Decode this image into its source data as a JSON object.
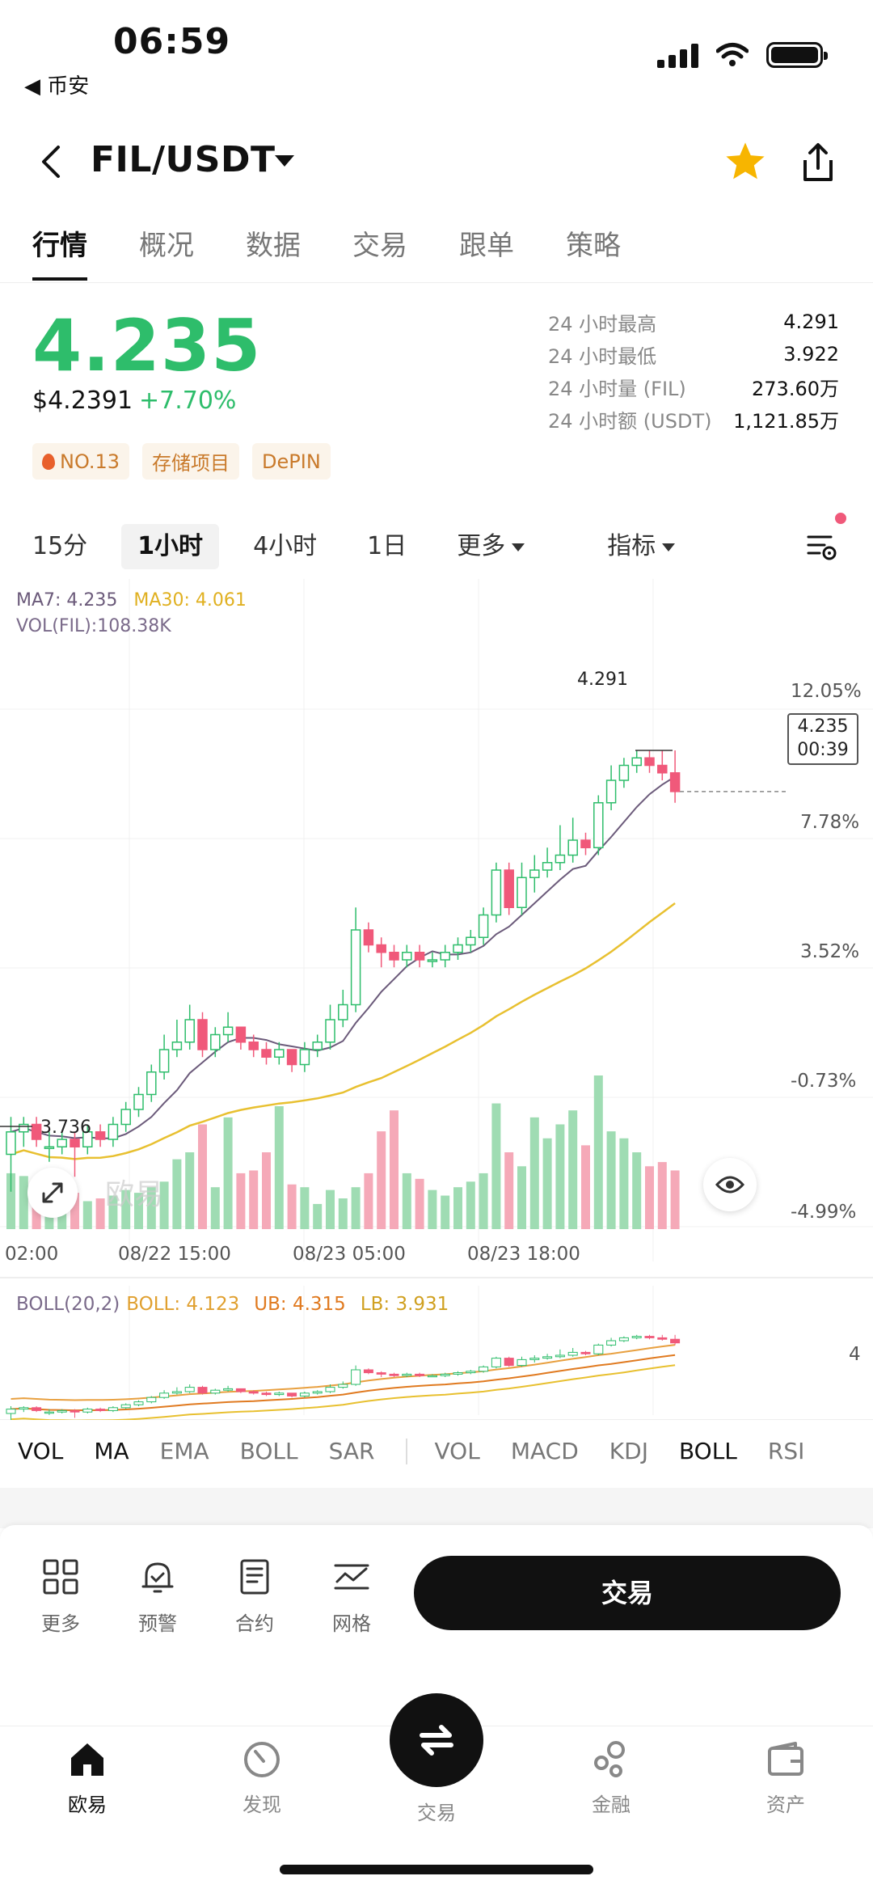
{
  "status_bar": {
    "time": "06:59",
    "back_app": "◀ 币安"
  },
  "header": {
    "pair": "FIL/USDT"
  },
  "tabs": [
    "行情",
    "概况",
    "数据",
    "交易",
    "跟单",
    "策略"
  ],
  "price": {
    "last": "4.235",
    "usd": "$4.2391",
    "change": "+7.70%"
  },
  "tags": [
    "NO.13",
    "存储项目",
    "DePIN"
  ],
  "stats": [
    {
      "label": "24 小时最高",
      "value": "4.291"
    },
    {
      "label": "24 小时最低",
      "value": "3.922"
    },
    {
      "label": "24 小时量 (FIL)",
      "value": "273.60万"
    },
    {
      "label": "24 小时额 (USDT)",
      "value": "1,121.85万"
    }
  ],
  "intervals": {
    "m15": "15分",
    "h1": "1小时",
    "h4": "4小时",
    "d1": "1日",
    "more": "更多",
    "indicator": "指标"
  },
  "chart": {
    "ma7": "MA7: 4.235",
    "ma30": "MA30: 4.061",
    "vol": "VOL(FIL):108.38K",
    "high_label": "4.291",
    "low_label": "3.736",
    "current_price": "4.235",
    "countdown": "00:39",
    "watermark": "欧易",
    "y_axis": [
      "12.05%",
      "7.78%",
      "3.52%",
      "-0.73%",
      "-4.99%"
    ],
    "x_axis": [
      "02:00",
      "08/22 15:00",
      "08/23 05:00",
      "08/23 18:00"
    ]
  },
  "chart_data": {
    "type": "candlestick",
    "title": "FIL/USDT 1小时",
    "ylim": [
      3.65,
      4.45
    ],
    "candles": [
      {
        "o": 3.75,
        "c": 3.78,
        "h": 3.8,
        "l": 3.7,
        "v": 40
      },
      {
        "o": 3.78,
        "c": 3.79,
        "h": 3.8,
        "l": 3.76,
        "v": 38
      },
      {
        "o": 3.79,
        "c": 3.77,
        "h": 3.8,
        "l": 3.76,
        "v": 30
      },
      {
        "o": 3.76,
        "c": 3.76,
        "h": 3.78,
        "l": 3.74,
        "v": 22
      },
      {
        "o": 3.76,
        "c": 3.77,
        "h": 3.78,
        "l": 3.75,
        "v": 25
      },
      {
        "o": 3.77,
        "c": 3.76,
        "h": 3.78,
        "l": 3.72,
        "v": 26
      },
      {
        "o": 3.76,
        "c": 3.78,
        "h": 3.79,
        "l": 3.75,
        "v": 20
      },
      {
        "o": 3.78,
        "c": 3.77,
        "h": 3.79,
        "l": 3.76,
        "v": 22
      },
      {
        "o": 3.77,
        "c": 3.79,
        "h": 3.8,
        "l": 3.76,
        "v": 24
      },
      {
        "o": 3.79,
        "c": 3.81,
        "h": 3.82,
        "l": 3.78,
        "v": 28
      },
      {
        "o": 3.81,
        "c": 3.83,
        "h": 3.84,
        "l": 3.8,
        "v": 26
      },
      {
        "o": 3.83,
        "c": 3.86,
        "h": 3.87,
        "l": 3.82,
        "v": 30
      },
      {
        "o": 3.86,
        "c": 3.89,
        "h": 3.91,
        "l": 3.85,
        "v": 34
      },
      {
        "o": 3.89,
        "c": 3.9,
        "h": 3.93,
        "l": 3.88,
        "v": 50
      },
      {
        "o": 3.9,
        "c": 3.93,
        "h": 3.95,
        "l": 3.89,
        "v": 55
      },
      {
        "o": 3.93,
        "c": 3.89,
        "h": 3.94,
        "l": 3.88,
        "v": 75
      },
      {
        "o": 3.89,
        "c": 3.91,
        "h": 3.92,
        "l": 3.88,
        "v": 30
      },
      {
        "o": 3.91,
        "c": 3.92,
        "h": 3.94,
        "l": 3.9,
        "v": 80
      },
      {
        "o": 3.92,
        "c": 3.9,
        "h": 3.92,
        "l": 3.89,
        "v": 40
      },
      {
        "o": 3.9,
        "c": 3.89,
        "h": 3.91,
        "l": 3.88,
        "v": 42
      },
      {
        "o": 3.89,
        "c": 3.88,
        "h": 3.9,
        "l": 3.87,
        "v": 55
      },
      {
        "o": 3.88,
        "c": 3.89,
        "h": 3.9,
        "l": 3.87,
        "v": 88
      },
      {
        "o": 3.89,
        "c": 3.87,
        "h": 3.89,
        "l": 3.86,
        "v": 32
      },
      {
        "o": 3.87,
        "c": 3.89,
        "h": 3.9,
        "l": 3.86,
        "v": 30
      },
      {
        "o": 3.89,
        "c": 3.9,
        "h": 3.91,
        "l": 3.88,
        "v": 18
      },
      {
        "o": 3.9,
        "c": 3.93,
        "h": 3.95,
        "l": 3.89,
        "v": 28
      },
      {
        "o": 3.93,
        "c": 3.95,
        "h": 3.97,
        "l": 3.92,
        "v": 22
      },
      {
        "o": 3.95,
        "c": 4.05,
        "h": 4.08,
        "l": 3.94,
        "v": 30
      },
      {
        "o": 4.05,
        "c": 4.03,
        "h": 4.06,
        "l": 4.02,
        "v": 40
      },
      {
        "o": 4.03,
        "c": 4.02,
        "h": 4.04,
        "l": 4.0,
        "v": 70
      },
      {
        "o": 4.02,
        "c": 4.01,
        "h": 4.03,
        "l": 4.0,
        "v": 85
      },
      {
        "o": 4.01,
        "c": 4.02,
        "h": 4.03,
        "l": 4.0,
        "v": 40
      },
      {
        "o": 4.02,
        "c": 4.01,
        "h": 4.03,
        "l": 4.0,
        "v": 36
      },
      {
        "o": 4.01,
        "c": 4.01,
        "h": 4.02,
        "l": 4.0,
        "v": 28
      },
      {
        "o": 4.01,
        "c": 4.02,
        "h": 4.03,
        "l": 4.0,
        "v": 24
      },
      {
        "o": 4.02,
        "c": 4.03,
        "h": 4.04,
        "l": 4.01,
        "v": 30
      },
      {
        "o": 4.03,
        "c": 4.04,
        "h": 4.05,
        "l": 4.02,
        "v": 34
      },
      {
        "o": 4.04,
        "c": 4.07,
        "h": 4.08,
        "l": 4.03,
        "v": 40
      },
      {
        "o": 4.07,
        "c": 4.13,
        "h": 4.14,
        "l": 4.06,
        "v": 90
      },
      {
        "o": 4.13,
        "c": 4.08,
        "h": 4.14,
        "l": 4.07,
        "v": 55
      },
      {
        "o": 4.08,
        "c": 4.12,
        "h": 4.14,
        "l": 4.07,
        "v": 45
      },
      {
        "o": 4.12,
        "c": 4.13,
        "h": 4.15,
        "l": 4.1,
        "v": 80
      },
      {
        "o": 4.13,
        "c": 4.14,
        "h": 4.16,
        "l": 4.12,
        "v": 65
      },
      {
        "o": 4.14,
        "c": 4.15,
        "h": 4.19,
        "l": 4.13,
        "v": 75
      },
      {
        "o": 4.15,
        "c": 4.17,
        "h": 4.2,
        "l": 4.14,
        "v": 85
      },
      {
        "o": 4.17,
        "c": 4.16,
        "h": 4.18,
        "l": 4.15,
        "v": 60
      },
      {
        "o": 4.16,
        "c": 4.22,
        "h": 4.23,
        "l": 4.15,
        "v": 110
      },
      {
        "o": 4.22,
        "c": 4.25,
        "h": 4.27,
        "l": 4.21,
        "v": 70
      },
      {
        "o": 4.25,
        "c": 4.27,
        "h": 4.28,
        "l": 4.24,
        "v": 65
      },
      {
        "o": 4.27,
        "c": 4.28,
        "h": 4.29,
        "l": 4.26,
        "v": 55
      },
      {
        "o": 4.28,
        "c": 4.27,
        "h": 4.29,
        "l": 4.26,
        "v": 45
      },
      {
        "o": 4.27,
        "c": 4.26,
        "h": 4.29,
        "l": 4.25,
        "v": 48
      },
      {
        "o": 4.26,
        "c": 4.235,
        "h": 4.29,
        "l": 4.22,
        "v": 42
      }
    ]
  },
  "boll": {
    "title": "BOLL(20,2)",
    "boll": "BOLL: 4.123",
    "ub": "UB: 4.315",
    "lb": "LB: 3.931",
    "axis": "4"
  },
  "indicators": [
    "VOL",
    "MA",
    "EMA",
    "BOLL",
    "SAR",
    "VOL",
    "MACD",
    "KDJ",
    "BOLL",
    "RSI"
  ],
  "actions": {
    "more": "更多",
    "alert": "预警",
    "contract": "合约",
    "grid": "网格",
    "trade": "交易"
  },
  "bottom_nav": {
    "home": "欧易",
    "discover": "发现",
    "trade": "交易",
    "finance": "金融",
    "assets": "资产"
  },
  "colors": {
    "up": "#2ebd6b",
    "down": "#f0597a",
    "vol_up": "#9fdcb3",
    "vol_down": "#f5a9b8"
  }
}
